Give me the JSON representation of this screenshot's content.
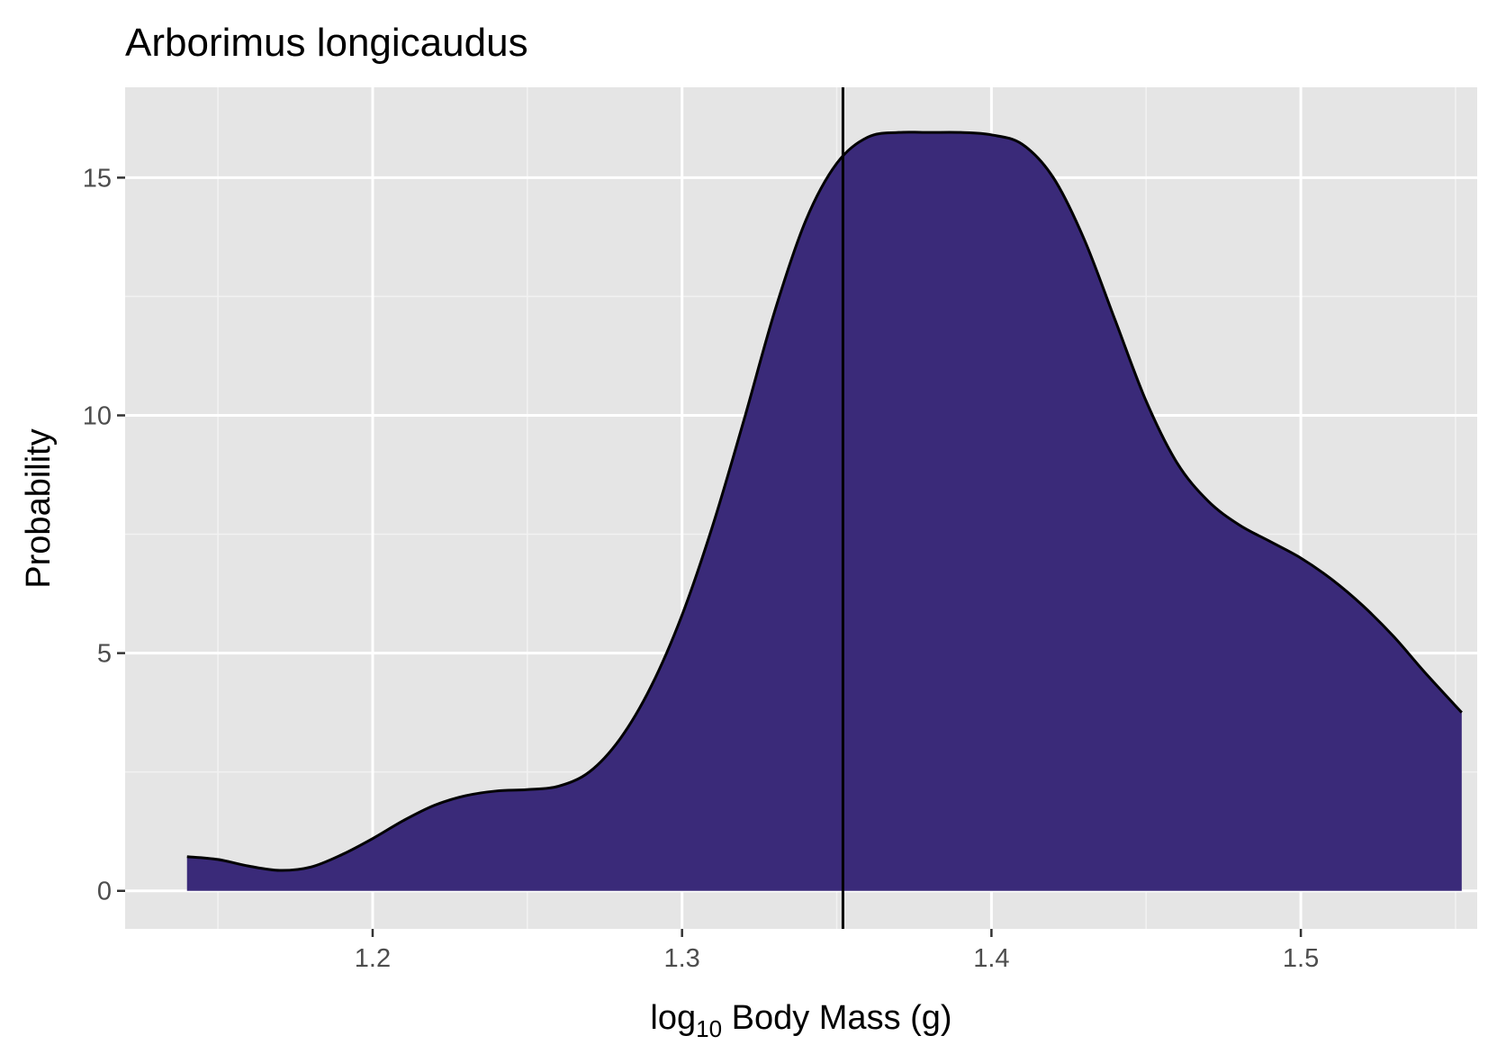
{
  "chart_data": {
    "type": "area",
    "title": "Arborimus longicaudus",
    "xlabel_main": "log",
    "xlabel_sub": "10",
    "xlabel_rest": " Body Mass (g)",
    "ylabel": "Probability",
    "xlim": [
      1.12,
      1.557
    ],
    "ylim": [
      -0.8,
      16.9
    ],
    "x_ticks": [
      1.2,
      1.3,
      1.4,
      1.5
    ],
    "x_tick_labels": [
      "1.2",
      "1.3",
      "1.4",
      "1.5"
    ],
    "x_minor_ticks": [
      1.15,
      1.25,
      1.35,
      1.45,
      1.55
    ],
    "y_ticks": [
      0,
      5,
      10,
      15
    ],
    "y_tick_labels": [
      "0",
      "5",
      "10",
      "15"
    ],
    "y_minor_ticks": [
      2.5,
      7.5,
      12.5
    ],
    "grid": true,
    "fill_color": "#3a2a79",
    "line_color": "#000000",
    "panel_color": "#e5e5e5",
    "vline_x": 1.352,
    "density": {
      "x": [
        1.14,
        1.15,
        1.16,
        1.17,
        1.18,
        1.19,
        1.2,
        1.21,
        1.22,
        1.23,
        1.24,
        1.25,
        1.26,
        1.27,
        1.28,
        1.29,
        1.3,
        1.31,
        1.32,
        1.33,
        1.34,
        1.35,
        1.36,
        1.37,
        1.38,
        1.39,
        1.4,
        1.41,
        1.42,
        1.43,
        1.44,
        1.45,
        1.46,
        1.47,
        1.48,
        1.49,
        1.5,
        1.51,
        1.52,
        1.53,
        1.54,
        1.552
      ],
      "y": [
        0.72,
        0.66,
        0.52,
        0.43,
        0.5,
        0.76,
        1.1,
        1.48,
        1.8,
        2.0,
        2.1,
        2.13,
        2.2,
        2.5,
        3.2,
        4.3,
        5.8,
        7.7,
        9.9,
        12.2,
        14.1,
        15.3,
        15.85,
        15.95,
        15.95,
        15.95,
        15.9,
        15.7,
        15.0,
        13.7,
        12.0,
        10.3,
        9.0,
        8.2,
        7.7,
        7.35,
        7.0,
        6.55,
        6.0,
        5.35,
        4.6,
        3.75
      ]
    }
  }
}
